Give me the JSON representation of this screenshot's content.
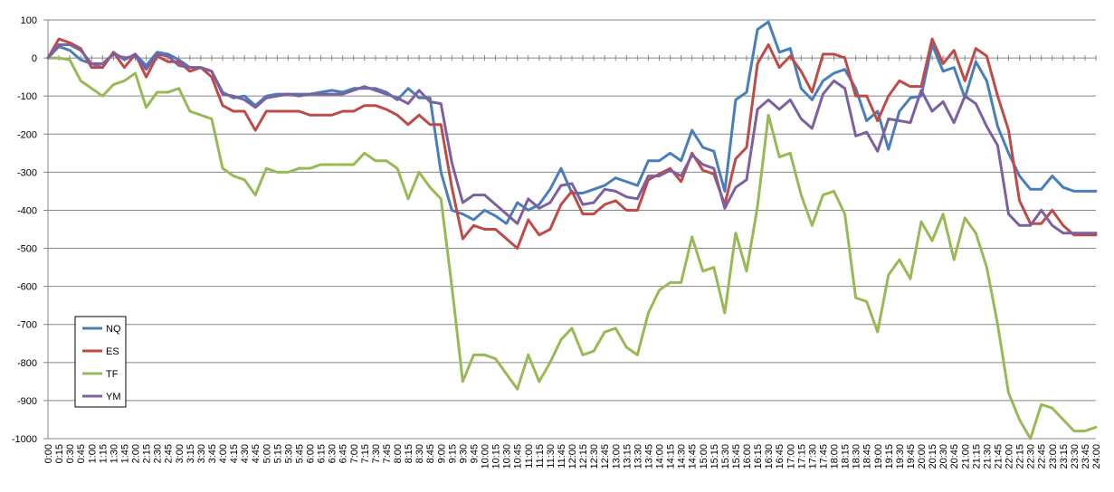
{
  "chart_data": {
    "type": "line",
    "title": "",
    "xlabel": "",
    "ylabel": "",
    "ylim": [
      -1000,
      100
    ],
    "y_ticks": [
      100,
      0,
      -100,
      -200,
      -300,
      -400,
      -500,
      -600,
      -700,
      -800,
      -900,
      -1000
    ],
    "grid": "horizontal",
    "legend_position": "bottom-left",
    "x": [
      "0:00",
      "0:15",
      "0:30",
      "0:45",
      "1:00",
      "1:15",
      "1:30",
      "1:45",
      "2:00",
      "2:15",
      "2:30",
      "2:45",
      "3:00",
      "3:15",
      "3:30",
      "3:45",
      "4:00",
      "4:15",
      "4:30",
      "4:45",
      "5:00",
      "5:15",
      "5:30",
      "5:45",
      "6:00",
      "6:15",
      "6:30",
      "6:45",
      "7:00",
      "7:15",
      "7:30",
      "7:45",
      "8:00",
      "8:15",
      "8:30",
      "8:45",
      "9:00",
      "9:15",
      "9:30",
      "9:45",
      "10:00",
      "10:15",
      "10:30",
      "10:45",
      "11:00",
      "11:15",
      "11:30",
      "11:45",
      "12:00",
      "12:15",
      "12:30",
      "12:45",
      "13:00",
      "13:15",
      "13:30",
      "13:45",
      "14:00",
      "14:15",
      "14:30",
      "14:45",
      "15:00",
      "15:15",
      "15:30",
      "15:45",
      "16:00",
      "16:15",
      "16:30",
      "16:45",
      "17:00",
      "17:15",
      "17:30",
      "17:45",
      "18:00",
      "18:15",
      "18:30",
      "18:45",
      "19:00",
      "19:15",
      "19:30",
      "19:45",
      "20:00",
      "20:15",
      "20:30",
      "20:45",
      "21:00",
      "21:15",
      "21:30",
      "21:45",
      "22:00",
      "22:15",
      "22:30",
      "22:45",
      "23:00",
      "23:15",
      "23:30",
      "23:45",
      "24:00"
    ],
    "series": [
      {
        "name": "NQ",
        "color": "#4a7ebb",
        "values": [
          0,
          30,
          20,
          -5,
          -15,
          -25,
          15,
          -5,
          10,
          -20,
          15,
          10,
          -5,
          -25,
          -25,
          -35,
          -90,
          -105,
          -100,
          -125,
          -100,
          -95,
          -95,
          -95,
          -95,
          -90,
          -85,
          -90,
          -80,
          -80,
          -80,
          -90,
          -110,
          -80,
          -105,
          -105,
          -300,
          -400,
          -410,
          -425,
          -400,
          -415,
          -435,
          -380,
          -400,
          -385,
          -345,
          -290,
          -355,
          -355,
          -345,
          -335,
          -315,
          -325,
          -335,
          -270,
          -270,
          -250,
          -270,
          -190,
          -235,
          -245,
          -350,
          -110,
          -90,
          75,
          95,
          15,
          25,
          -80,
          -110,
          -60,
          -40,
          -30,
          -80,
          -165,
          -140,
          -240,
          -140,
          -105,
          -100,
          35,
          -35,
          -25,
          -105,
          -10,
          -60,
          -180,
          -250,
          -310,
          -345,
          -345,
          -310,
          -340,
          -350,
          -350,
          -350
        ]
      },
      {
        "name": "ES",
        "color": "#be4b48",
        "values": [
          0,
          50,
          40,
          25,
          -25,
          -25,
          15,
          -25,
          10,
          -50,
          5,
          -10,
          -10,
          -35,
          -25,
          -50,
          -125,
          -140,
          -140,
          -190,
          -140,
          -140,
          -140,
          -140,
          -150,
          -150,
          -150,
          -140,
          -140,
          -125,
          -125,
          -135,
          -150,
          -175,
          -150,
          -175,
          -175,
          -340,
          -475,
          -440,
          -450,
          -450,
          -475,
          -500,
          -425,
          -465,
          -450,
          -385,
          -350,
          -410,
          -410,
          -385,
          -375,
          -400,
          -400,
          -320,
          -305,
          -290,
          -325,
          -250,
          -295,
          -305,
          -385,
          -265,
          -235,
          -15,
          35,
          -25,
          5,
          -35,
          -90,
          10,
          10,
          0,
          -100,
          -100,
          -165,
          -100,
          -60,
          -75,
          -75,
          50,
          -15,
          20,
          -60,
          25,
          5,
          -100,
          -190,
          -375,
          -435,
          -435,
          -400,
          -440,
          -465,
          -465,
          -465
        ]
      },
      {
        "name": "TF",
        "color": "#98b954",
        "values": [
          0,
          0,
          -5,
          -60,
          -80,
          -100,
          -70,
          -60,
          -40,
          -130,
          -90,
          -90,
          -80,
          -140,
          -150,
          -160,
          -290,
          -310,
          -320,
          -360,
          -290,
          -300,
          -300,
          -290,
          -290,
          -280,
          -280,
          -280,
          -280,
          -250,
          -270,
          -270,
          -290,
          -370,
          -300,
          -340,
          -370,
          -600,
          -850,
          -780,
          -780,
          -790,
          -830,
          -870,
          -780,
          -850,
          -800,
          -740,
          -710,
          -780,
          -770,
          -720,
          -710,
          -760,
          -780,
          -670,
          -610,
          -590,
          -590,
          -470,
          -560,
          -550,
          -670,
          -460,
          -560,
          -390,
          -150,
          -260,
          -250,
          -360,
          -440,
          -360,
          -350,
          -410,
          -630,
          -640,
          -720,
          -570,
          -530,
          -580,
          -430,
          -480,
          -410,
          -530,
          -420,
          -460,
          -550,
          -700,
          -880,
          -950,
          -1000,
          -910,
          -920,
          -950,
          -980,
          -980,
          -970
        ]
      },
      {
        "name": "YM",
        "color": "#7d60a0",
        "values": [
          0,
          35,
          35,
          20,
          -15,
          -15,
          10,
          0,
          5,
          -30,
          10,
          5,
          -20,
          -25,
          -25,
          -35,
          -95,
          -100,
          -110,
          -130,
          -105,
          -100,
          -95,
          -100,
          -95,
          -95,
          -95,
          -95,
          -85,
          -75,
          -85,
          -95,
          -105,
          -120,
          -85,
          -115,
          -120,
          -275,
          -380,
          -360,
          -360,
          -385,
          -410,
          -435,
          -370,
          -395,
          -380,
          -335,
          -330,
          -385,
          -380,
          -345,
          -350,
          -365,
          -370,
          -310,
          -310,
          -295,
          -310,
          -255,
          -280,
          -290,
          -395,
          -340,
          -320,
          -135,
          -110,
          -135,
          -110,
          -160,
          -185,
          -95,
          -60,
          -80,
          -205,
          -195,
          -245,
          -160,
          -165,
          -170,
          -85,
          -140,
          -115,
          -170,
          -100,
          -120,
          -180,
          -230,
          -410,
          -440,
          -440,
          -400,
          -440,
          -460,
          -460,
          -460,
          -460
        ]
      }
    ]
  }
}
